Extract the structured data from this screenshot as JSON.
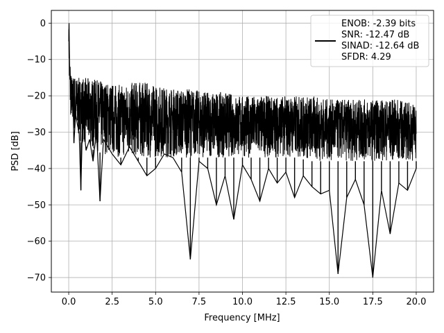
{
  "chart_data": {
    "type": "line",
    "title": "",
    "xlabel": "Frequency [MHz]",
    "ylabel": "PSD [dB]",
    "xlim": [
      -1.0,
      21.0
    ],
    "ylim": [
      -74.0,
      3.5
    ],
    "xticks": [
      0.0,
      2.5,
      5.0,
      7.5,
      10.0,
      12.5,
      15.0,
      17.5,
      20.0
    ],
    "xtick_labels": [
      "0.0",
      "2.5",
      "5.0",
      "7.5",
      "10.0",
      "12.5",
      "15.0",
      "17.5",
      "20.0"
    ],
    "yticks": [
      0,
      -10,
      -20,
      -30,
      -40,
      -50,
      -60,
      -70
    ],
    "ytick_labels": [
      "0",
      "−10",
      "−20",
      "−30",
      "−40",
      "−50",
      "−60",
      "−70"
    ],
    "grid": true,
    "legend": {
      "placement": "top-right",
      "lines": [
        "ENOB: -2.39 bits",
        "SNR: -12.47 dB",
        "SINAD: -12.64 dB",
        "SFDR: 4.29"
      ]
    },
    "series": [
      {
        "color": "#000000",
        "x": [
          0.0,
          0.02,
          0.04,
          0.06,
          0.08,
          0.1,
          0.13,
          0.16,
          0.2,
          0.25,
          0.3,
          0.4,
          0.5,
          0.6,
          0.7,
          0.8,
          1.0,
          1.2,
          1.4,
          1.6,
          1.8,
          2.0,
          2.5,
          3.0,
          3.5,
          4.0,
          4.5,
          5.0,
          5.5,
          6.0,
          6.5,
          7.0,
          7.5,
          8.0,
          8.5,
          9.0,
          9.5,
          10.0,
          10.5,
          11.0,
          11.5,
          12.0,
          12.5,
          13.0,
          13.5,
          14.0,
          14.5,
          15.0,
          15.5,
          16.0,
          16.5,
          17.0,
          17.5,
          18.0,
          18.5,
          19.0,
          19.5,
          20.0
        ],
        "y": [
          -5,
          0,
          -8,
          -14,
          -12,
          -18,
          -16,
          -24,
          -20,
          -22,
          -33,
          -25,
          -28,
          -30,
          -46,
          -26,
          -35,
          -32,
          -38,
          -30,
          -49,
          -32,
          -36,
          -39,
          -34,
          -38,
          -42,
          -40,
          -36,
          -37,
          -41,
          -65,
          -38,
          -40,
          -50,
          -42,
          -54,
          -39,
          -43,
          -49,
          -40,
          -44,
          -41,
          -48,
          -42,
          -45,
          -47,
          -46,
          -69,
          -48,
          -43,
          -50,
          -70,
          -46,
          -58,
          -44,
          -46,
          -40
        ],
        "envelope": {
          "x": [
            0.0,
            0.05,
            0.1,
            0.2,
            0.3,
            0.5,
            1.0,
            2.0,
            3.0,
            4.0,
            5.0,
            6.0,
            7.0,
            8.0,
            9.0,
            10.0,
            11.0,
            12.0,
            13.0,
            14.0,
            15.0,
            16.0,
            17.0,
            18.0,
            19.0,
            20.0
          ],
          "upper": [
            0,
            -10,
            -13,
            -15,
            -14,
            -15,
            -15,
            -16,
            -17,
            -16,
            -17,
            -18,
            -18,
            -19,
            -19,
            -20,
            -20,
            -20,
            -20,
            -20,
            -21,
            -21,
            -21,
            -21,
            -21,
            -22
          ],
          "lower": [
            -5,
            -22,
            -26,
            -28,
            -30,
            -32,
            -34,
            -36,
            -37,
            -37,
            -37,
            -37,
            -37,
            -37,
            -37,
            -37,
            -37,
            -37,
            -37,
            -38,
            -38,
            -38,
            -38,
            -38,
            -38,
            -38
          ]
        }
      }
    ]
  }
}
